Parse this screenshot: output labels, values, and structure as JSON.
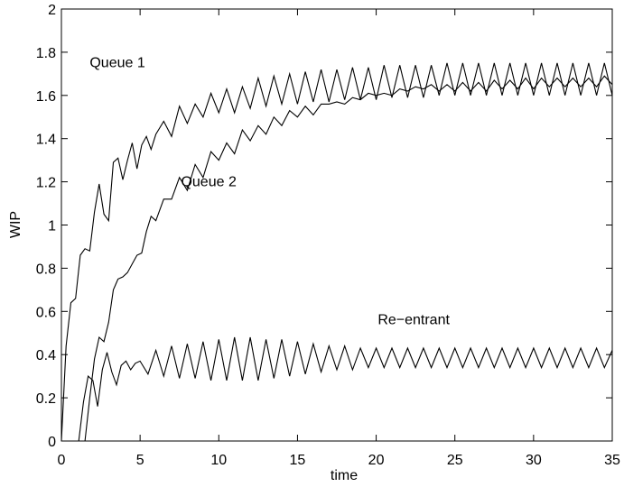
{
  "chart_data": {
    "type": "line",
    "title": "",
    "xlabel": "time",
    "ylabel": "WIP",
    "xlim": [
      0,
      35
    ],
    "ylim": [
      0,
      2
    ],
    "x_ticks": [
      "0",
      "5",
      "10",
      "15",
      "20",
      "25",
      "30",
      "35"
    ],
    "y_ticks": [
      "0",
      "0.2",
      "0.4",
      "0.6",
      "0.8",
      "1",
      "1.2",
      "1.4",
      "1.6",
      "1.8",
      "2"
    ],
    "grid": false,
    "annotations": [
      {
        "text": "Queue 1",
        "x": 1.8,
        "y": 1.73
      },
      {
        "text": "Queue 2",
        "x": 7.6,
        "y": 1.18
      },
      {
        "text": "Re−entrant",
        "x": 20.1,
        "y": 0.54
      }
    ],
    "series": [
      {
        "x": [
          0,
          0.3,
          0.6,
          0.9,
          1.2,
          1.5,
          1.8,
          2.1,
          2.4,
          2.7,
          3.0,
          3.3,
          3.6,
          3.9,
          4.2,
          4.5,
          4.8,
          5.1,
          5.4,
          5.7,
          6.0,
          6.5,
          7.0,
          7.5,
          8.0,
          8.5,
          9.0,
          9.5,
          10.0,
          10.5,
          11.0,
          11.5,
          12.0,
          12.5,
          13.0,
          13.5,
          14.0,
          14.5,
          15.0,
          15.5,
          16.0,
          16.5,
          17.0,
          17.5,
          18.0,
          18.5,
          19.0,
          19.5,
          20.0,
          20.5,
          21.0,
          21.5,
          22.0,
          22.5,
          23.0,
          23.5,
          24.0,
          24.5,
          25.0,
          25.5,
          26.0,
          26.5,
          27.0,
          27.5,
          28.0,
          28.5,
          29.0,
          29.5,
          30.0,
          30.5,
          31.0,
          31.5,
          32.0,
          32.5,
          33.0,
          33.5,
          34.0,
          34.5,
          35.0
        ],
        "values": [
          0.0,
          0.44,
          0.64,
          0.66,
          0.86,
          0.89,
          0.88,
          1.06,
          1.19,
          1.05,
          1.02,
          1.29,
          1.31,
          1.21,
          1.3,
          1.38,
          1.26,
          1.37,
          1.41,
          1.35,
          1.42,
          1.48,
          1.41,
          1.55,
          1.47,
          1.56,
          1.5,
          1.61,
          1.52,
          1.63,
          1.52,
          1.64,
          1.54,
          1.68,
          1.55,
          1.69,
          1.56,
          1.7,
          1.56,
          1.71,
          1.57,
          1.72,
          1.57,
          1.72,
          1.58,
          1.73,
          1.58,
          1.73,
          1.58,
          1.74,
          1.59,
          1.74,
          1.59,
          1.74,
          1.59,
          1.74,
          1.6,
          1.75,
          1.6,
          1.75,
          1.6,
          1.75,
          1.6,
          1.75,
          1.6,
          1.75,
          1.6,
          1.75,
          1.6,
          1.75,
          1.6,
          1.75,
          1.6,
          1.75,
          1.6,
          1.75,
          1.6,
          1.75,
          1.6
        ]
      },
      {
        "x": [
          1.5,
          1.8,
          2.1,
          2.4,
          2.7,
          3.0,
          3.3,
          3.6,
          3.9,
          4.2,
          4.5,
          4.8,
          5.1,
          5.4,
          5.7,
          6.0,
          6.5,
          7.0,
          7.5,
          8.0,
          8.5,
          9.0,
          9.5,
          10.0,
          10.5,
          11.0,
          11.5,
          12.0,
          12.5,
          13.0,
          13.5,
          14.0,
          14.5,
          15.0,
          15.5,
          16.0,
          16.5,
          17.0,
          17.5,
          18.0,
          18.5,
          19.0,
          19.5,
          20.0,
          20.5,
          21.0,
          21.5,
          22.0,
          22.5,
          23.0,
          23.5,
          24.0,
          24.5,
          25.0,
          25.5,
          26.0,
          26.5,
          27.0,
          27.5,
          28.0,
          28.5,
          29.0,
          29.5,
          30.0,
          30.5,
          31.0,
          31.5,
          32.0,
          32.5,
          33.0,
          33.5,
          34.0,
          34.5,
          35.0
        ],
        "values": [
          0.0,
          0.2,
          0.38,
          0.48,
          0.46,
          0.55,
          0.7,
          0.75,
          0.76,
          0.78,
          0.82,
          0.86,
          0.87,
          0.97,
          1.04,
          1.02,
          1.12,
          1.12,
          1.22,
          1.16,
          1.28,
          1.22,
          1.34,
          1.3,
          1.38,
          1.33,
          1.44,
          1.39,
          1.46,
          1.42,
          1.5,
          1.46,
          1.53,
          1.5,
          1.55,
          1.51,
          1.56,
          1.56,
          1.57,
          1.56,
          1.59,
          1.58,
          1.61,
          1.6,
          1.61,
          1.6,
          1.63,
          1.62,
          1.64,
          1.63,
          1.65,
          1.62,
          1.65,
          1.62,
          1.66,
          1.62,
          1.66,
          1.62,
          1.67,
          1.63,
          1.67,
          1.63,
          1.68,
          1.63,
          1.68,
          1.64,
          1.68,
          1.64,
          1.68,
          1.64,
          1.68,
          1.64,
          1.69,
          1.65
        ]
      },
      {
        "x": [
          1.1,
          1.4,
          1.7,
          2.0,
          2.3,
          2.6,
          2.9,
          3.2,
          3.5,
          3.8,
          4.1,
          4.4,
          4.7,
          5.0,
          5.5,
          6.0,
          6.5,
          7.0,
          7.5,
          8.0,
          8.5,
          9.0,
          9.5,
          10.0,
          10.5,
          11.0,
          11.5,
          12.0,
          12.5,
          13.0,
          13.5,
          14.0,
          14.5,
          15.0,
          15.5,
          16.0,
          16.5,
          17.0,
          17.5,
          18.0,
          18.5,
          19.0,
          19.5,
          20.0,
          20.5,
          21.0,
          21.5,
          22.0,
          22.5,
          23.0,
          23.5,
          24.0,
          24.5,
          25.0,
          25.5,
          26.0,
          26.5,
          27.0,
          27.5,
          28.0,
          28.5,
          29.0,
          29.5,
          30.0,
          30.5,
          31.0,
          31.5,
          32.0,
          32.5,
          33.0,
          33.5,
          34.0,
          34.5,
          35.0
        ],
        "values": [
          0.0,
          0.18,
          0.3,
          0.28,
          0.16,
          0.33,
          0.41,
          0.32,
          0.26,
          0.35,
          0.37,
          0.33,
          0.36,
          0.37,
          0.31,
          0.42,
          0.3,
          0.44,
          0.29,
          0.45,
          0.29,
          0.46,
          0.28,
          0.47,
          0.28,
          0.48,
          0.28,
          0.48,
          0.28,
          0.47,
          0.29,
          0.47,
          0.3,
          0.46,
          0.31,
          0.45,
          0.32,
          0.44,
          0.33,
          0.44,
          0.33,
          0.43,
          0.34,
          0.43,
          0.34,
          0.43,
          0.34,
          0.43,
          0.34,
          0.43,
          0.34,
          0.43,
          0.34,
          0.43,
          0.34,
          0.43,
          0.34,
          0.43,
          0.34,
          0.43,
          0.34,
          0.43,
          0.34,
          0.43,
          0.34,
          0.43,
          0.34,
          0.43,
          0.34,
          0.43,
          0.34,
          0.43,
          0.34,
          0.42
        ]
      }
    ]
  }
}
